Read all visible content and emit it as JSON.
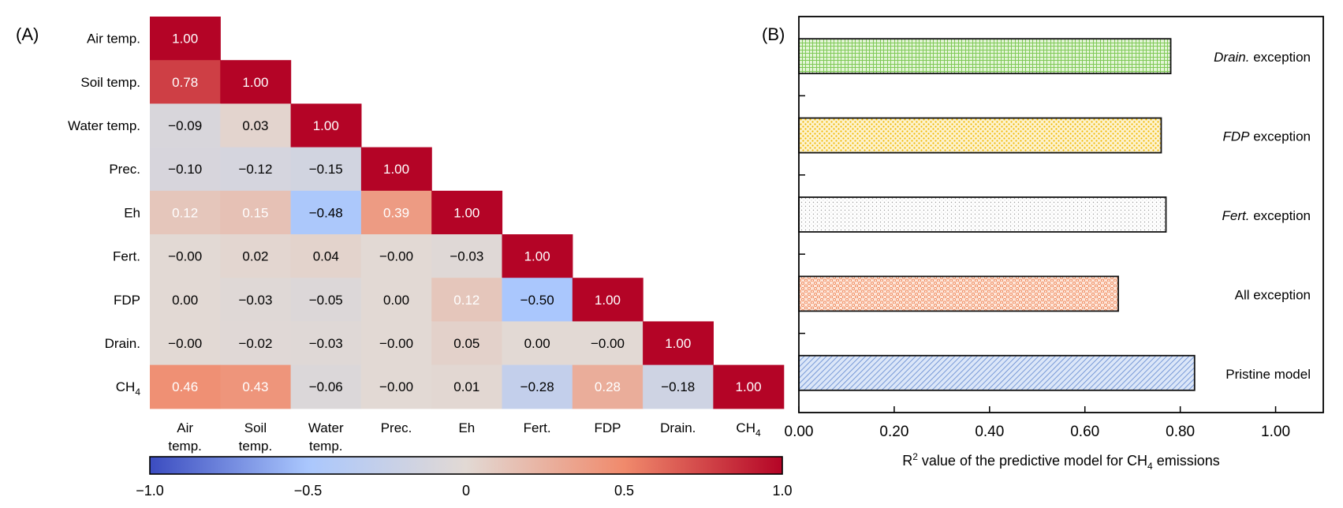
{
  "chart_data": [
    {
      "type": "heatmap",
      "panel_label": "(A)",
      "row_labels": [
        {
          "text": "Air temp.",
          "sub": ""
        },
        {
          "text": "Soil temp.",
          "sub": ""
        },
        {
          "text": "Water temp.",
          "sub": ""
        },
        {
          "text": "Prec.",
          "sub": ""
        },
        {
          "text": "Eh",
          "sub": ""
        },
        {
          "text": "Fert.",
          "sub": ""
        },
        {
          "text": "FDP",
          "sub": ""
        },
        {
          "text": "Drain.",
          "sub": ""
        },
        {
          "text": "CH",
          "sub": "4"
        }
      ],
      "col_labels": [
        {
          "lines": [
            "Air",
            "temp."
          ],
          "sub": ""
        },
        {
          "lines": [
            "Soil",
            "temp."
          ],
          "sub": ""
        },
        {
          "lines": [
            "Water",
            "temp."
          ],
          "sub": ""
        },
        {
          "lines": [
            "Prec."
          ],
          "sub": ""
        },
        {
          "lines": [
            "Eh"
          ],
          "sub": ""
        },
        {
          "lines": [
            "Fert."
          ],
          "sub": ""
        },
        {
          "lines": [
            "FDP"
          ],
          "sub": ""
        },
        {
          "lines": [
            "Drain."
          ],
          "sub": ""
        },
        {
          "lines": [
            "CH"
          ],
          "sub": "4"
        }
      ],
      "values": [
        [
          1.0
        ],
        [
          0.78,
          1.0
        ],
        [
          -0.09,
          0.03,
          1.0
        ],
        [
          -0.1,
          -0.12,
          -0.15,
          1.0
        ],
        [
          0.12,
          0.15,
          -0.48,
          0.39,
          1.0
        ],
        [
          -0.0,
          0.02,
          0.04,
          -0.0,
          -0.03,
          1.0
        ],
        [
          0.0,
          -0.03,
          -0.05,
          0.0,
          0.12,
          -0.5,
          1.0
        ],
        [
          -0.0,
          -0.02,
          -0.03,
          -0.0,
          0.05,
          0.0,
          -0.0,
          1.0
        ],
        [
          0.46,
          0.43,
          -0.06,
          -0.0,
          0.01,
          -0.28,
          0.28,
          -0.18,
          1.0
        ]
      ],
      "labels": [
        [
          "1.00"
        ],
        [
          "0.78",
          "1.00"
        ],
        [
          "−0.09",
          "0.03",
          "1.00"
        ],
        [
          "−0.10",
          "−0.12",
          "−0.15",
          "1.00"
        ],
        [
          "0.12",
          "0.15",
          "−0.48",
          "0.39",
          "1.00"
        ],
        [
          "−0.00",
          "0.02",
          "0.04",
          "−0.00",
          "−0.03",
          "1.00"
        ],
        [
          "0.00",
          "−0.03",
          "−0.05",
          "0.00",
          "0.12",
          "−0.50",
          "1.00"
        ],
        [
          "−0.00",
          "−0.02",
          "−0.03",
          "−0.00",
          "0.05",
          "0.00",
          "−0.00",
          "1.00"
        ],
        [
          "0.46",
          "0.43",
          "−0.06",
          "−0.00",
          "0.01",
          "−0.28",
          "0.28",
          "−0.18",
          "1.00"
        ]
      ],
      "colorbar": {
        "range": [
          -1.0,
          1.0
        ],
        "ticks": [
          -1.0,
          -0.5,
          0,
          0.5,
          1.0
        ],
        "tick_labels": [
          "−1.0",
          "−0.5",
          "0",
          "0.5",
          "1.0"
        ],
        "colors": [
          "#3b4cc0",
          "#aac7fd",
          "#e2d9d4",
          "#f08a6c",
          "#b40426"
        ]
      }
    },
    {
      "type": "bar",
      "orientation": "horizontal",
      "panel_label": "(B)",
      "categories": [
        {
          "italic": "Drain.",
          "text": " exception",
          "pattern": "grid",
          "color": "#8fd46a"
        },
        {
          "italic": "FDP",
          "text": " exception",
          "pattern": "dots",
          "color": "#f2c21c"
        },
        {
          "italic": "Fert.",
          "text": " exception",
          "pattern": "fine",
          "color": "#b8b8b8"
        },
        {
          "italic": "",
          "text": "All exception",
          "pattern": "hex",
          "color": "#f4a27a"
        },
        {
          "italic": "",
          "text": "Pristine model",
          "pattern": "diag",
          "color": "#6f94d6"
        }
      ],
      "values": [
        0.78,
        0.76,
        0.77,
        0.67,
        0.83
      ],
      "xlim": [
        0.0,
        1.1
      ],
      "xticks": [
        0.0,
        0.2,
        0.4,
        0.6,
        0.8,
        1.0
      ],
      "xtick_labels": [
        "0.00",
        "0.20",
        "0.40",
        "0.60",
        "0.80",
        "1.00"
      ],
      "xlabel": {
        "pre": "R",
        "sup": "2",
        "mid": " value of the predictive model for CH",
        "sub": "4",
        "post": " emissions"
      }
    }
  ]
}
